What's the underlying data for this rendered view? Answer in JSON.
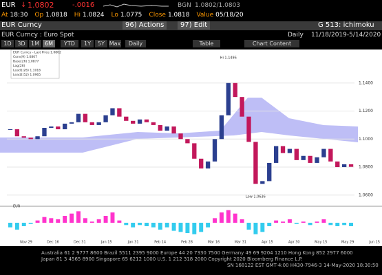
{
  "header": {
    "ticker": "EUR",
    "price": "1.0802",
    "change": "-.0016",
    "source": "BGN",
    "bid_ask": "1.0802/1.0803",
    "quote": [
      [
        "At",
        "18:30"
      ],
      [
        "Op",
        "1.0818"
      ],
      [
        "Hi",
        "1.0824"
      ],
      [
        "Lo",
        "1.0775"
      ],
      [
        "Close",
        "1.0818"
      ],
      [
        "Value",
        "05/18/20"
      ]
    ],
    "security": "EUR Curncy",
    "actions": "96) Actions",
    "edit": "97) Edit",
    "function": "G 513: ichimoku",
    "description": "EUR Curncy : Euro Spot",
    "frequency": "Daily",
    "range": "11/18/2019-5/14/2020",
    "buttons": [
      "1D",
      "3D",
      "1M",
      "6M",
      "YTD",
      "1Y",
      "5Y",
      "Max",
      "Daily"
    ],
    "table": "Table",
    "chart_content": "Chart Content"
  },
  "chart_data": [
    {
      "type": "candlestick",
      "close": [
        1.107,
        1.102,
        1.101,
        1.1,
        1.102,
        1.108,
        1.109,
        1.107,
        1.111,
        1.112,
        1.118,
        1.112,
        1.11,
        1.112,
        1.117,
        1.122,
        1.116,
        1.113,
        1.111,
        1.114,
        1.112,
        1.11,
        1.106,
        1.109,
        1.104,
        1.1,
        1.097,
        1.086,
        1.079,
        1.084,
        1.1,
        1.117,
        1.14,
        1.13,
        1.116,
        1.098,
        1.068,
        1.07,
        1.083,
        1.095,
        1.09,
        1.093,
        1.085,
        1.088,
        1.083,
        1.087,
        1.093,
        1.084,
        1.08,
        1.082,
        1.0802
      ],
      "up_color": "#2b3f8f",
      "down_color": "#c2185b",
      "ylim": [
        1.055,
        1.16
      ],
      "yticks": [
        {
          "value": 1.06,
          "label": "1.0600"
        },
        {
          "value": 1.08,
          "label": "1.0800"
        },
        {
          "value": 1.1,
          "label": "1.1000"
        },
        {
          "value": 1.12,
          "label": "1.1200"
        },
        {
          "value": 1.14,
          "label": "1.1400"
        }
      ],
      "legend": [
        "EUR Curncy - Last Price 1.0802",
        "Conv(9) 1.0807",
        "Base(26) 1.0877",
        "Lag(26)",
        "Lead1(26) 1.1016",
        "Lead2(52) 1.0965"
      ],
      "annotations": [
        "Hi 1.1495",
        "Low 1.0636"
      ],
      "date_labels": [
        "Nov 29",
        "Dec 16",
        "Dec 31",
        "Jan 15",
        "Jan 31",
        "Feb 14",
        "Feb 28",
        "Mar 16",
        "Mar 31",
        "Apr 15",
        "Apr 30",
        "May 15",
        "May 29",
        "Jun 15"
      ]
    },
    {
      "type": "bar",
      "legend": [
        "EUR"
      ],
      "values": [
        -0.004,
        -0.006,
        -0.003,
        -0.001,
        0.002,
        0.005,
        0.004,
        0.003,
        0.006,
        0.008,
        0.01,
        0.004,
        0.001,
        0.003,
        0.006,
        0.009,
        0.002,
        -0.002,
        -0.004,
        -0.002,
        -0.003,
        -0.004,
        -0.006,
        -0.004,
        -0.007,
        -0.008,
        -0.009,
        -0.01,
        -0.008,
        -0.004,
        0.004,
        0.009,
        0.011,
        0.008,
        0.003,
        -0.006,
        -0.01,
        -0.008,
        -0.003,
        0.002,
        0.001,
        0.003,
        -0.001,
        0.001,
        -0.002,
        0.001,
        0.003,
        -0.002,
        -0.003,
        -0.002,
        -0.003
      ],
      "pos_color": "#ff33cc",
      "neg_color": "#33ccee",
      "ylim": [
        -0.012,
        0.012
      ]
    }
  ],
  "footer": [
    "Australia 61 2 9777 8600 Brazil 5511 2395 9000 Europe 44 20 7330 7500 Germany 49 69 9204 1210 Hong Kong 852 2977 6000",
    "Japan 81 3 4565 8900 Singapore 65 6212 1000 U.S. 1 212 318 2000 Copyright 2020 Bloomberg Finance L.P.",
    "SN 168122 EST GMT-4:00 H430-7946-3 14-May-2020 18:30:50"
  ]
}
